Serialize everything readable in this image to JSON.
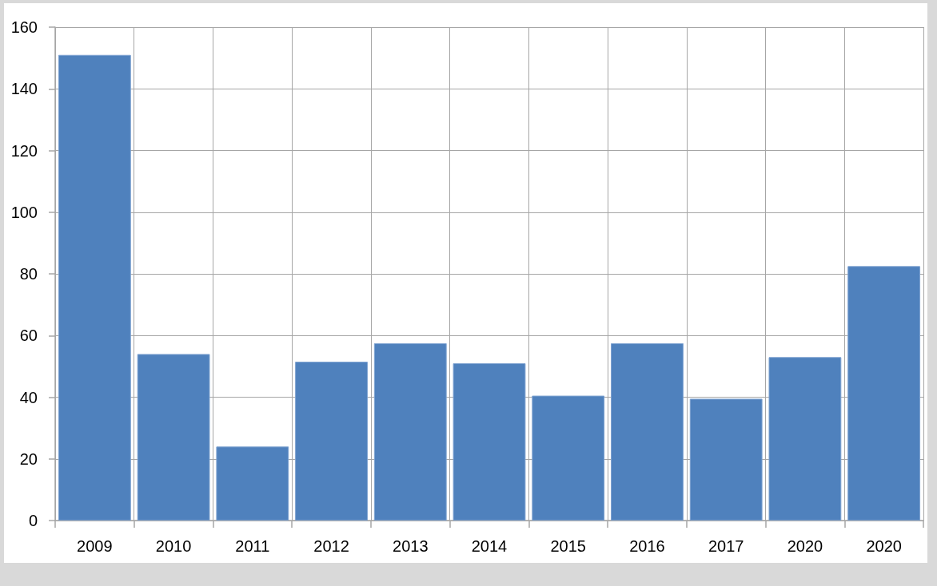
{
  "chart_data": {
    "type": "bar",
    "categories": [
      "2009",
      "2010",
      "2011",
      "2012",
      "2013",
      "2014",
      "2015",
      "2016",
      "2017",
      "2020",
      "2020"
    ],
    "values": [
      151,
      54,
      24,
      51.5,
      57.5,
      51,
      40.5,
      57.5,
      39.5,
      53,
      82.5
    ],
    "color": "#4f81bd",
    "ylim": [
      0,
      160
    ],
    "yticks": [
      0,
      20,
      40,
      60,
      80,
      100,
      120,
      140,
      160
    ],
    "grid": true
  }
}
